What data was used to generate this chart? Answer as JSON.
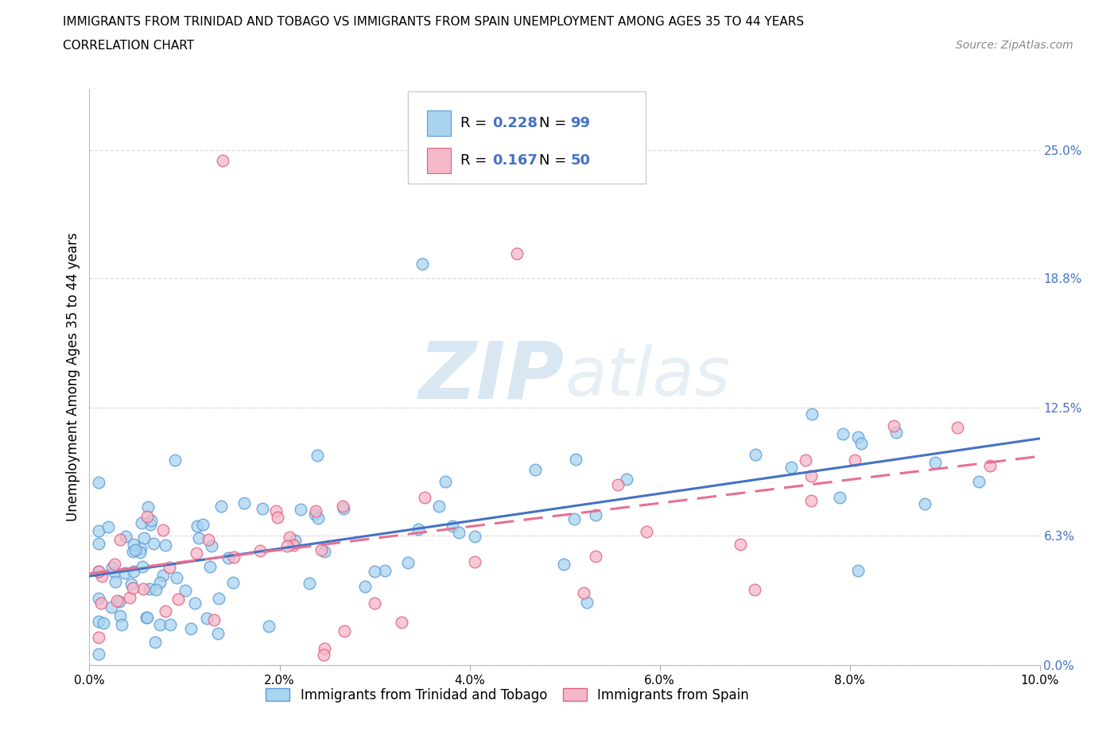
{
  "title_line1": "IMMIGRANTS FROM TRINIDAD AND TOBAGO VS IMMIGRANTS FROM SPAIN UNEMPLOYMENT AMONG AGES 35 TO 44 YEARS",
  "title_line2": "CORRELATION CHART",
  "source_text": "Source: ZipAtlas.com",
  "ylabel": "Unemployment Among Ages 35 to 44 years",
  "xlim": [
    0.0,
    0.1
  ],
  "ylim": [
    0.0,
    0.28
  ],
  "ytick_positions": [
    0.0,
    0.063,
    0.125,
    0.188,
    0.25
  ],
  "ytick_labels": [
    "0.0%",
    "6.3%",
    "12.5%",
    "18.8%",
    "25.0%"
  ],
  "xtick_positions": [
    0.0,
    0.02,
    0.04,
    0.06,
    0.08,
    0.1
  ],
  "xtick_labels": [
    "0.0%",
    "2.0%",
    "4.0%",
    "6.0%",
    "8.0%",
    "10.0%"
  ],
  "r_tt": 0.228,
  "n_tt": 99,
  "r_sp": 0.167,
  "n_sp": 50,
  "color_tt_face": "#a8d4f0",
  "color_tt_edge": "#5b9bd5",
  "color_sp_face": "#f5b8c8",
  "color_sp_edge": "#e06080",
  "line_color_tt": "#4472c4",
  "line_color_sp": "#e87090",
  "watermark_text": "ZIPatlas",
  "legend_label_tt": "Immigrants from Trinidad and Tobago",
  "legend_label_sp": "Immigrants from Spain",
  "bg_color": "#ffffff",
  "grid_color": "#d8d8d8",
  "title_fontsize": 11,
  "axis_label_fontsize": 12,
  "tick_fontsize": 11,
  "legend_fontsize": 13
}
